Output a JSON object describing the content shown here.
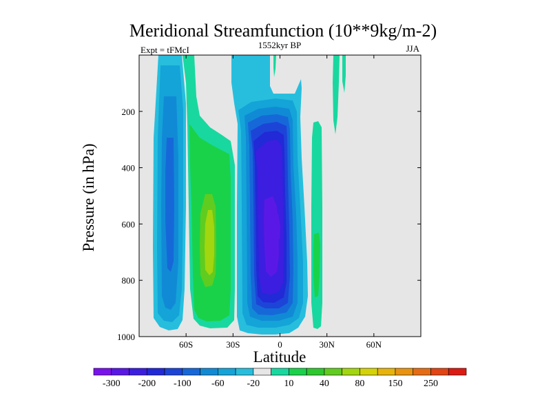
{
  "chart_data": {
    "type": "filled-contour",
    "title": "Meridional Streamfunction (10**9kg/m-2)",
    "subtitle_left": "Expt = tFMcI",
    "subtitle_center": "1552kyr BP",
    "subtitle_right": "JJA",
    "xlabel": "Latitude",
    "ylabel": "Pressure (in hPa)",
    "xlim": [
      -90,
      90
    ],
    "ylim": [
      1000,
      0
    ],
    "x_ticks": [
      {
        "value": -60,
        "label": "60S"
      },
      {
        "value": -30,
        "label": "30S"
      },
      {
        "value": 0,
        "label": "0"
      },
      {
        "value": 30,
        "label": "30N"
      },
      {
        "value": 60,
        "label": "60N"
      }
    ],
    "y_ticks": [
      {
        "value": 200,
        "label": "200"
      },
      {
        "value": 400,
        "label": "400"
      },
      {
        "value": 600,
        "label": "600"
      },
      {
        "value": 800,
        "label": "800"
      },
      {
        "value": 1000,
        "label": "1000"
      }
    ],
    "background_color": "#e6e6e6",
    "colorbar": {
      "colors": [
        "#7a12ee",
        "#5a18e6",
        "#3c1ee0",
        "#2229d6",
        "#1c45d8",
        "#1668d8",
        "#118ad6",
        "#14a4d8",
        "#27bedd",
        "#e6e6e6",
        "#18d8a0",
        "#19d24a",
        "#2dc82d",
        "#60cc1f",
        "#a2d60f",
        "#d5d307",
        "#e8b40b",
        "#e99310",
        "#e66c13",
        "#e24413",
        "#dc1b13"
      ],
      "labels": [
        "-300",
        "-200",
        "-100",
        "-60",
        "-20",
        "10",
        "40",
        "80",
        "150",
        "250"
      ]
    },
    "regions": [
      {
        "name": "southern-polar-negative-cell",
        "level": "-20",
        "x_range": [
          -80,
          -63
        ],
        "p_range": [
          0,
          975
        ],
        "value_range": [
          -60,
          -20
        ]
      },
      {
        "name": "southern-ferrel-positive-cell",
        "level": "10",
        "x_range": [
          -60,
          -34
        ],
        "p_range": [
          0,
          970
        ],
        "value_range": [
          10,
          80
        ]
      },
      {
        "name": "hadley-negative-cell",
        "level": "-300",
        "x_range": [
          -30,
          12
        ],
        "p_range": [
          130,
          995
        ],
        "value_range": [
          -300,
          -20
        ]
      },
      {
        "name": "northern-tropical-positive-cell",
        "level": "10",
        "x_range": [
          20,
          29
        ],
        "p_range": [
          230,
          980
        ],
        "value_range": [
          10,
          40
        ]
      },
      {
        "name": "northern-upper-positive-strands",
        "level": "10",
        "x_range": [
          34,
          44
        ],
        "p_range": [
          0,
          300
        ],
        "value_range": [
          10,
          40
        ]
      }
    ]
  }
}
